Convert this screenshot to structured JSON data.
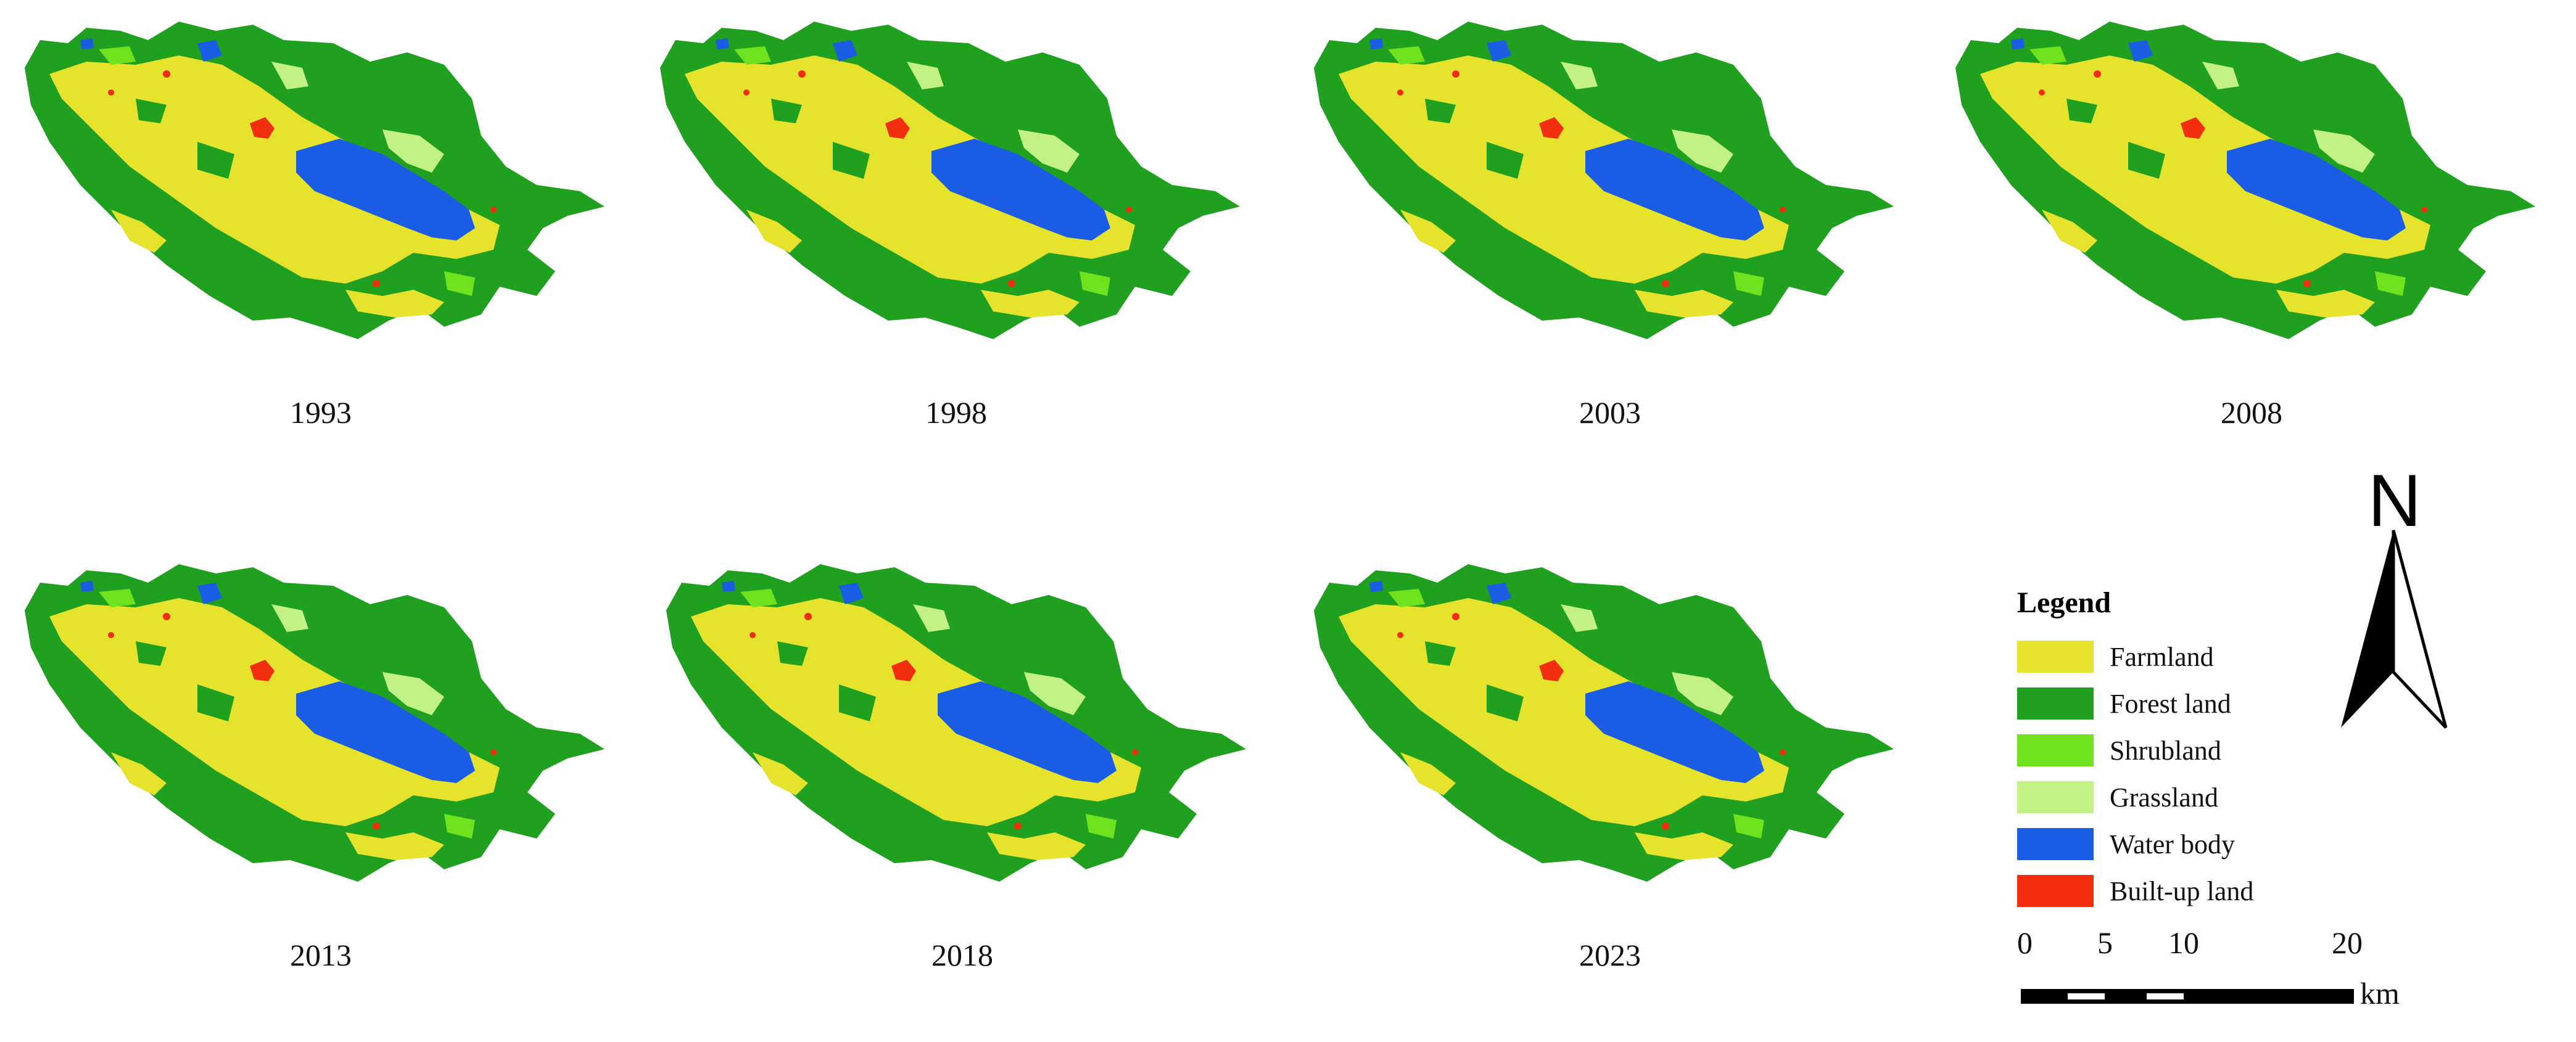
{
  "panels": [
    {
      "year": "1993"
    },
    {
      "year": "1998"
    },
    {
      "year": "2003"
    },
    {
      "year": "2008"
    },
    {
      "year": "2013"
    },
    {
      "year": "2018"
    },
    {
      "year": "2023"
    }
  ],
  "legend": {
    "title": "Legend",
    "items": [
      {
        "label": "Farmland",
        "color": "#E6E32C"
      },
      {
        "label": "Forest land",
        "color": "#1FA01F"
      },
      {
        "label": "Shrubland",
        "color": "#6EE21E"
      },
      {
        "label": "Grassland",
        "color": "#C2F285"
      },
      {
        "label": "Water body",
        "color": "#1A5CE3"
      },
      {
        "label": "Built-up land",
        "color": "#F22E0E"
      }
    ]
  },
  "north_arrow": {
    "letter": "N"
  },
  "scale_bar": {
    "ticks": [
      "0",
      "5",
      "10",
      "20"
    ],
    "unit": "km"
  }
}
